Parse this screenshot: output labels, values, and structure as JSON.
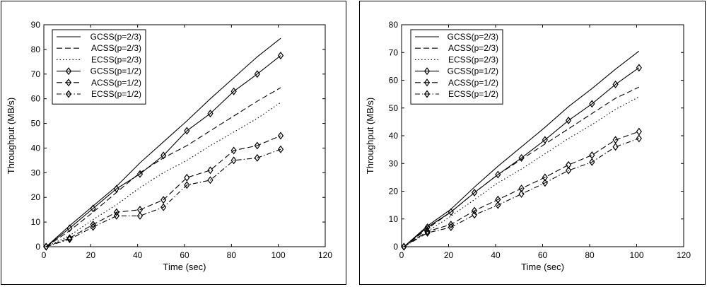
{
  "chart_data": [
    {
      "type": "line",
      "title": "",
      "xlabel": "Time (sec)",
      "ylabel": "Throughput (MB/s)",
      "xlim": [
        0,
        120
      ],
      "ylim": [
        0,
        90
      ],
      "xticks": [
        0,
        20,
        40,
        60,
        80,
        100,
        120
      ],
      "yticks": [
        0,
        10,
        20,
        30,
        40,
        50,
        60,
        70,
        80,
        90
      ],
      "grid": false,
      "legend_position": "top-left",
      "x": [
        1,
        11,
        21,
        31,
        41,
        51,
        61,
        71,
        81,
        91,
        101
      ],
      "series": [
        {
          "name": "GCSS(p=2/3)",
          "style": "solid",
          "marker": "none",
          "values": [
            0,
            8.5,
            16.5,
            24.5,
            34,
            42.5,
            51,
            60,
            68.5,
            77,
            84.5
          ]
        },
        {
          "name": "ACSS(p=2/3)",
          "style": "dashed",
          "marker": "none",
          "values": [
            0,
            6.5,
            14,
            22,
            30,
            36,
            41,
            47,
            53,
            59,
            64.5
          ]
        },
        {
          "name": "ECSS(p=2/3)",
          "style": "dotted",
          "marker": "none",
          "values": [
            0,
            4.5,
            11,
            17,
            24,
            30,
            35,
            41,
            46.5,
            52,
            58.5
          ]
        },
        {
          "name": "GCSS(p=1/2)",
          "style": "solid",
          "marker": "diamond",
          "values": [
            0,
            7.5,
            15.5,
            23.5,
            29.5,
            37,
            47,
            54,
            63,
            70,
            77.5
          ]
        },
        {
          "name": "ACSS(p=1/2)",
          "style": "dashed",
          "marker": "diamond",
          "values": [
            0,
            3.5,
            9,
            14,
            15,
            19,
            28,
            31,
            39,
            41,
            45
          ]
        },
        {
          "name": "ECSS(p=1/2)",
          "style": "dashdot",
          "marker": "diamond",
          "values": [
            0,
            3,
            8,
            12.5,
            12.5,
            16,
            25,
            27,
            35,
            36,
            39.5
          ]
        }
      ]
    },
    {
      "type": "line",
      "title": "",
      "xlabel": "Time (sec)",
      "ylabel": "Throughput (MB/s)",
      "xlim": [
        0,
        120
      ],
      "ylim": [
        0,
        80
      ],
      "xticks": [
        0,
        20,
        40,
        60,
        80,
        100,
        120
      ],
      "yticks": [
        0,
        10,
        20,
        30,
        40,
        50,
        60,
        70,
        80
      ],
      "grid": false,
      "legend_position": "top-left",
      "x": [
        1,
        11,
        21,
        31,
        41,
        51,
        61,
        71,
        81,
        91,
        101
      ],
      "series": [
        {
          "name": "GCSS(p=2/3)",
          "style": "solid",
          "marker": "none",
          "values": [
            0,
            7.5,
            13.5,
            21.5,
            29,
            36,
            43,
            50.5,
            57,
            64,
            70.5
          ]
        },
        {
          "name": "ACSS(p=2/3)",
          "style": "dashed",
          "marker": "none",
          "values": [
            0,
            6.5,
            12.5,
            19.5,
            26,
            31.5,
            37,
            42.5,
            48,
            53.5,
            57.5
          ]
        },
        {
          "name": "ECSS(p=2/3)",
          "style": "dotted",
          "marker": "none",
          "values": [
            0,
            5.5,
            11,
            17,
            23,
            28,
            33.5,
            39,
            44,
            49.5,
            54
          ]
        },
        {
          "name": "GCSS(p=1/2)",
          "style": "solid",
          "marker": "diamond",
          "values": [
            0,
            7,
            12.5,
            19.5,
            26,
            32,
            38.5,
            45.5,
            51.5,
            58.5,
            64.5
          ]
        },
        {
          "name": "ACSS(p=1/2)",
          "style": "dashed",
          "marker": "diamond",
          "values": [
            0,
            5.5,
            8,
            13,
            17,
            21,
            25,
            29.5,
            33,
            38.5,
            41.5
          ]
        },
        {
          "name": "ECSS(p=1/2)",
          "style": "dashdot",
          "marker": "diamond",
          "values": [
            0,
            5,
            7,
            11.5,
            15,
            19,
            23,
            27.5,
            30.5,
            36,
            39
          ]
        }
      ]
    }
  ]
}
